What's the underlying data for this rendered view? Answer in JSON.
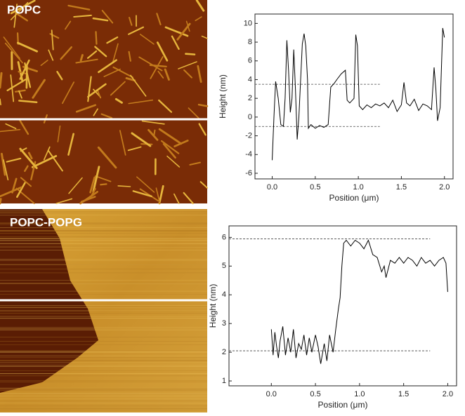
{
  "images": [
    {
      "label": "POPC"
    },
    {
      "label": "POPC-POPG"
    }
  ],
  "chart_data": [
    {
      "type": "line",
      "ylabel": "Height (nm)",
      "xlabel": "Position (μm)",
      "xlim": [
        -0.2,
        2.1
      ],
      "ylim": [
        -6.6,
        11
      ],
      "xticks": [
        {
          "value": 0,
          "label": "0.0"
        },
        0.5,
        {
          "value": 1,
          "label": "1.0"
        },
        1.5,
        {
          "value": 2,
          "label": "2.0"
        }
      ],
      "yticks": [
        -6,
        -4,
        -2,
        0,
        2,
        4,
        6,
        8,
        10
      ],
      "ref_lines": [
        {
          "y": 3.5,
          "x": [
            -0.2,
            1.25
          ]
        },
        {
          "y": -1,
          "x": [
            -0.2,
            1.25
          ]
        }
      ],
      "series": [
        {
          "color": "#000000",
          "x": [
            0,
            0.02,
            0.04,
            0.07,
            0.1,
            0.13,
            0.15,
            0.17,
            0.19,
            0.21,
            0.23,
            0.25,
            0.27,
            0.29,
            0.31,
            0.33,
            0.35,
            0.37,
            0.39,
            0.41,
            0.42,
            0.45,
            0.5,
            0.55,
            0.6,
            0.65,
            0.68,
            0.72,
            0.75,
            0.8,
            0.85,
            0.87,
            0.9,
            0.95,
            0.97,
            0.99,
            1.01,
            1.05,
            1.1,
            1.15,
            1.2,
            1.25,
            1.3,
            1.35,
            1.4,
            1.45,
            1.5,
            1.53,
            1.56,
            1.6,
            1.65,
            1.7,
            1.75,
            1.8,
            1.85,
            1.88,
            1.9,
            1.92,
            1.95,
            1.98,
            2.0
          ],
          "values": [
            -4.6,
            0,
            3.8,
            2,
            -0.8,
            -1,
            2,
            8.2,
            5,
            0.5,
            2,
            7.2,
            3,
            -2.4,
            0,
            4,
            7.8,
            8.9,
            7.6,
            4,
            -1.2,
            -0.8,
            -1.2,
            -0.9,
            -1.1,
            -0.8,
            3.2,
            3.6,
            4,
            4.6,
            5,
            1.8,
            1.5,
            2,
            8.8,
            7.6,
            1.2,
            0.8,
            1.3,
            1.0,
            1.4,
            1.2,
            1.5,
            1.0,
            1.8,
            0.6,
            1.3,
            3.7,
            1.5,
            1.2,
            1.9,
            0.7,
            1.4,
            1.2,
            0.8,
            5.3,
            3,
            -0.4,
            1,
            9.5,
            8.5
          ]
        }
      ]
    },
    {
      "type": "line",
      "ylabel": "Height (nm)",
      "xlabel": "Position (μm)",
      "xlim": [
        -0.48,
        2.1
      ],
      "ylim": [
        0.83,
        6.4
      ],
      "xticks": [
        {
          "value": 0,
          "label": "0.0"
        },
        0.5,
        {
          "value": 1,
          "label": "1.0"
        },
        1.5,
        {
          "value": 2,
          "label": "2.0"
        }
      ],
      "yticks": [
        1,
        2,
        3,
        4,
        5,
        6
      ],
      "ref_lines": [
        {
          "y": 5.95,
          "x": [
            -0.48,
            1.8
          ]
        },
        {
          "y": 2.05,
          "x": [
            -0.48,
            1.8
          ]
        }
      ],
      "series": [
        {
          "color": "#000000",
          "x": [
            0,
            0.02,
            0.04,
            0.06,
            0.08,
            0.1,
            0.13,
            0.16,
            0.19,
            0.22,
            0.25,
            0.28,
            0.31,
            0.34,
            0.37,
            0.4,
            0.43,
            0.46,
            0.5,
            0.53,
            0.56,
            0.6,
            0.63,
            0.66,
            0.7,
            0.73,
            0.76,
            0.78,
            0.8,
            0.82,
            0.85,
            0.9,
            0.95,
            1.0,
            1.05,
            1.1,
            1.15,
            1.2,
            1.25,
            1.28,
            1.3,
            1.35,
            1.4,
            1.45,
            1.5,
            1.55,
            1.6,
            1.65,
            1.7,
            1.75,
            1.8,
            1.85,
            1.9,
            1.95,
            1.98,
            2.0
          ],
          "values": [
            2.8,
            1.9,
            2.7,
            2.2,
            1.8,
            2.4,
            2.9,
            1.9,
            2.5,
            2.0,
            2.8,
            1.8,
            2.3,
            2.1,
            2.6,
            1.9,
            2.5,
            2.0,
            2.6,
            2.2,
            1.6,
            2.3,
            1.7,
            2.6,
            2.0,
            2.8,
            3.5,
            3.9,
            5.0,
            5.8,
            5.9,
            5.7,
            5.9,
            5.8,
            5.6,
            5.9,
            5.4,
            5.3,
            4.8,
            5.0,
            4.6,
            5.2,
            5.1,
            5.3,
            5.1,
            5.3,
            5.2,
            5.0,
            5.3,
            5.1,
            5.2,
            5.0,
            5.2,
            5.3,
            5.1,
            4.1
          ]
        }
      ]
    }
  ]
}
